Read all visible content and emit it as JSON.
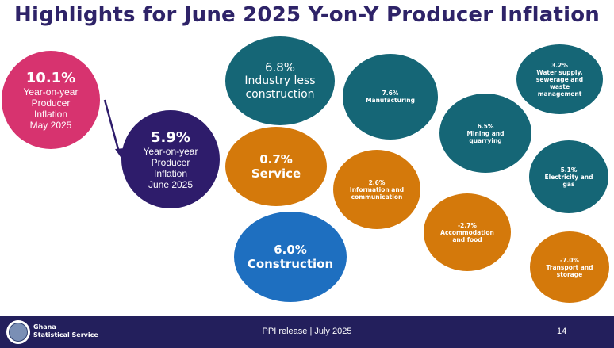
{
  "title": "Highlights for June 2025 Y-on-Y Producer Inflation",
  "colors": {
    "magenta": "#d7336f",
    "navy": "#2e1c6b",
    "teal": "#156676",
    "orange": "#d4790b",
    "blue": "#1e6fc0",
    "footer": "#231f5c"
  },
  "bubbles": {
    "may": {
      "value": "10.1%",
      "lines": [
        "Year-on-year",
        "Producer",
        "Inflation",
        "May 2025"
      ]
    },
    "june": {
      "value": "5.9%",
      "lines": [
        "Year-on-year",
        "Producer",
        "Inflation",
        "June 2025"
      ]
    },
    "industry": {
      "value": "6.8%",
      "lines": [
        "Industry less",
        "construction"
      ]
    },
    "service": {
      "value": "0.7%",
      "lines": [
        "Service"
      ]
    },
    "construction": {
      "value": "6.0%",
      "lines": [
        "Construction"
      ]
    },
    "manufacturing": {
      "value": "7.6%",
      "lines": [
        "Manufacturing"
      ]
    },
    "mining": {
      "value": "6.5%",
      "lines": [
        "Mining and",
        "quarrying"
      ]
    },
    "water": {
      "value": "3.2%",
      "lines": [
        "Water supply,",
        "sewerage and",
        "waste",
        "management"
      ]
    },
    "electricity": {
      "value": "5.1%",
      "lines": [
        "Electricity and",
        "gas"
      ]
    },
    "information": {
      "value": "2.6%",
      "lines": [
        "Information and",
        "communication"
      ]
    },
    "accommodation": {
      "value": "-2.7%",
      "lines": [
        "Accommodation",
        "and food"
      ]
    },
    "transport": {
      "value": "-7.0%",
      "lines": [
        "Transport and",
        "storage"
      ]
    }
  },
  "footer": {
    "org_lines": [
      "Ghana",
      "Statistical Service"
    ],
    "release": "PPI release | July 2025",
    "page_number": "14",
    "logo_icon": "ghana-statistical-service-seal-icon"
  }
}
